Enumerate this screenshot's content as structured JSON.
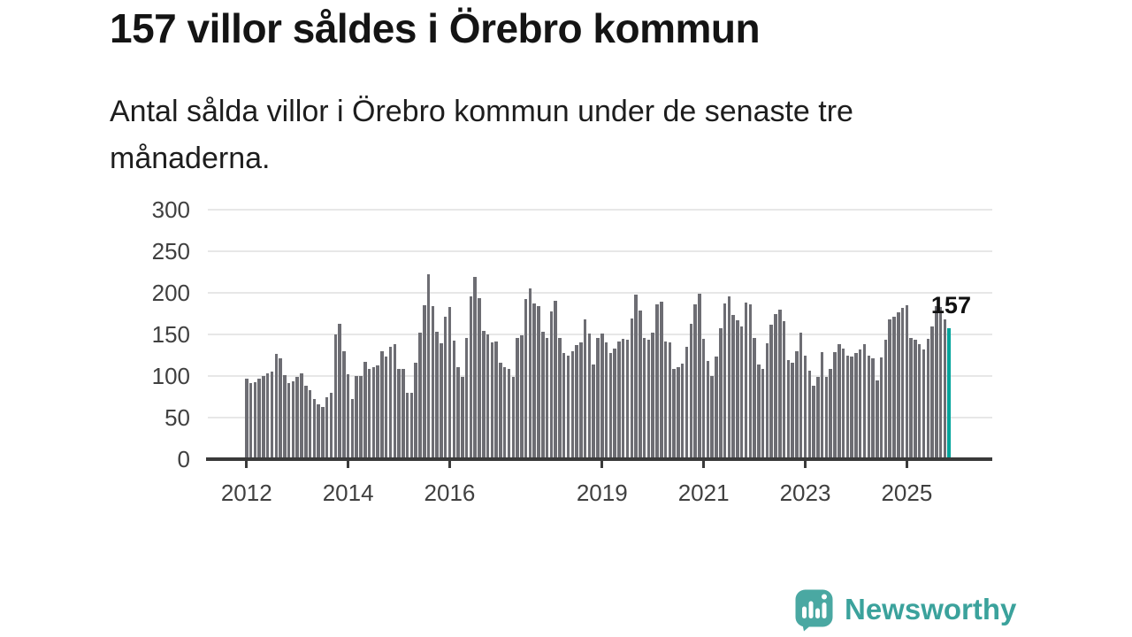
{
  "header": {
    "title": "157 villor såldes i Örebro kommun",
    "subtitle": "Antal sålda villor i Örebro kommun under de senaste tre månaderna."
  },
  "chart_data": {
    "type": "bar",
    "title": "157 villor såldes i Örebro kommun",
    "xlabel": "",
    "ylabel": "",
    "ylim": [
      0,
      300
    ],
    "y_ticks": [
      0,
      50,
      100,
      150,
      200,
      250,
      300
    ],
    "x_tick_labels": [
      "2012",
      "2014",
      "2016",
      "2019",
      "2021",
      "2023",
      "2025"
    ],
    "start_year": 2012,
    "frequency": "monthly",
    "grid": true,
    "legend": "none",
    "annotation": {
      "label": "157",
      "value": 157
    },
    "highlight_last_bar": true,
    "colors": {
      "bar": "#6D6D73",
      "highlight": "#00A49B",
      "gridline": "#E7E7E7",
      "axis": "#3A3A3A",
      "tick_text": "#404040"
    },
    "values": [
      97,
      91,
      93,
      97,
      100,
      103,
      105,
      127,
      121,
      101,
      91,
      94,
      99,
      103,
      88,
      83,
      72,
      66,
      63,
      75,
      80,
      150,
      163,
      130,
      102,
      72,
      100,
      100,
      117,
      109,
      111,
      113,
      130,
      123,
      135,
      138,
      108,
      109,
      80,
      80,
      116,
      152,
      185,
      222,
      184,
      153,
      139,
      171,
      183,
      143,
      111,
      99,
      146,
      196,
      219,
      194,
      154,
      150,
      140,
      142,
      116,
      111,
      108,
      99,
      146,
      149,
      193,
      205,
      187,
      184,
      153,
      146,
      178,
      190,
      146,
      128,
      125,
      130,
      137,
      140,
      168,
      151,
      114,
      146,
      151,
      140,
      128,
      133,
      141,
      145,
      144,
      169,
      198,
      179,
      146,
      144,
      152,
      186,
      189,
      142,
      140,
      109,
      111,
      115,
      135,
      163,
      186,
      199,
      145,
      118,
      100,
      123,
      157,
      187,
      196,
      173,
      167,
      160,
      188,
      186,
      146,
      114,
      109,
      139,
      162,
      175,
      180,
      166,
      119,
      116,
      130,
      152,
      125,
      106,
      88,
      99,
      129,
      99,
      109,
      129,
      138,
      133,
      124,
      123,
      128,
      132,
      138,
      125,
      121,
      95,
      122,
      144,
      168,
      171,
      177,
      182,
      185,
      146,
      144,
      138,
      132,
      145,
      160,
      184,
      183,
      168,
      157
    ]
  },
  "footer": {
    "brand": "Newsworthy",
    "brand_color": "#3BA29C",
    "icon_color": "#4AA8A2",
    "icon": "newsworthy-speech-bubble-chart"
  }
}
